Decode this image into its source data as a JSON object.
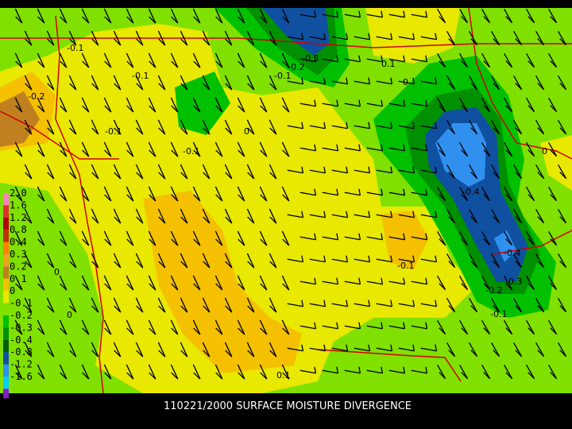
{
  "footer": {
    "title": "110221/2000 SURFACE MOISTURE DIVERGENCE"
  },
  "legend": [
    {
      "label": "2.0",
      "color": "#ff80c0"
    },
    {
      "label": "1.6",
      "color": "#e03030"
    },
    {
      "label": "1.2",
      "color": "#b00000"
    },
    {
      "label": "0.8",
      "color": "#c03000"
    },
    {
      "label": "0.4",
      "color": "#ff8000"
    },
    {
      "label": "0.3",
      "color": "#f0a020"
    },
    {
      "label": "0.2",
      "color": "#c08020"
    },
    {
      "label": "0.1",
      "color": "#f5c000"
    },
    {
      "label": "0",
      "color": "#e8e800"
    },
    {
      "label": "-0.1",
      "color": "#80e000"
    },
    {
      "label": "-0.2",
      "color": "#00c000"
    },
    {
      "label": "-0.3",
      "color": "#009000"
    },
    {
      "label": "-0.4",
      "color": "#006000"
    },
    {
      "label": "-0.8",
      "color": "#1050a0"
    },
    {
      "label": "-1.2",
      "color": "#3090f0"
    },
    {
      "label": "-1.6",
      "color": "#00d0f0"
    }
  ],
  "contour_labels": [
    "-0.1",
    "-0.1",
    "-0.2",
    "-0.1",
    "-0.1",
    "0",
    "-0.3",
    "-0.2",
    "-0.1",
    "0.1",
    "0",
    "-0.4",
    "-0.4",
    "-0.3",
    "-0.2",
    "-0.1",
    "-0.1",
    "0",
    "0",
    "0",
    "0.1"
  ]
}
